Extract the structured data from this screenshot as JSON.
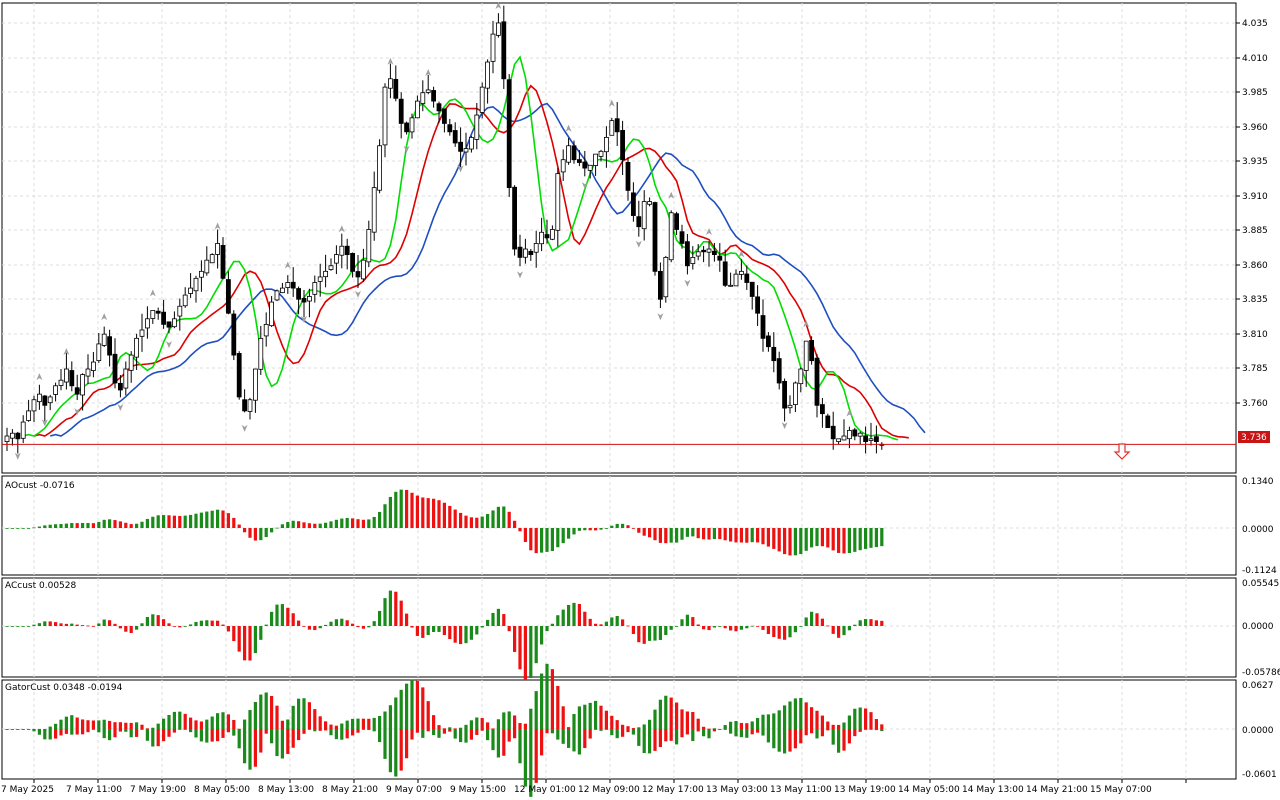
{
  "window": {
    "title": "MetaTrader chart"
  },
  "colors": {
    "background": "#ffffff",
    "grid": "#dcdcdc",
    "bull_body": "#ffffff",
    "bear_body": "#000000",
    "candle_outline": "#000000",
    "lips": "#00dd00",
    "teeth": "#dd0000",
    "jaw": "#1f4fbf",
    "hist_up": "#1a8a1a",
    "hist_down": "#ee1111",
    "price_line": "#d01010",
    "fractal": "#a0a0a0",
    "signal_arrow": "#e03030"
  },
  "main": {
    "current_price": "3.736",
    "price_ticks": [
      "4.035",
      "4.010",
      "3.985",
      "3.960",
      "3.935",
      "3.910",
      "3.885",
      "3.860",
      "3.835",
      "3.810",
      "3.785",
      "3.760"
    ],
    "signal": "sell-arrow-icon"
  },
  "panes": [
    {
      "id": "ao",
      "label": "AOcust -0.0716",
      "ticks": [
        "0.1340",
        "0.0000",
        "-0.1124"
      ]
    },
    {
      "id": "ac",
      "label": "ACcust 0.00528",
      "ticks": [
        "0.05545",
        "0.0000",
        "-0.05786"
      ]
    },
    {
      "id": "gator",
      "label": "GatorCust 0.0348 -0.0194",
      "ticks": [
        "0.0627",
        "0.0000",
        "-0.0601"
      ]
    }
  ],
  "time_axis": [
    "7 May 2025",
    "7 May 11:00",
    "7 May 19:00",
    "8 May 05:00",
    "8 May 13:00",
    "8 May 21:00",
    "9 May 07:00",
    "9 May 15:00",
    "12 May 01:00",
    "12 May 09:00",
    "12 May 17:00",
    "13 May 03:00",
    "13 May 11:00",
    "13 May 19:00",
    "14 May 05:00",
    "14 May 13:00",
    "14 May 21:00",
    "15 May 07:00"
  ],
  "chart_data": {
    "type": "candlestick",
    "price_range": [
      3.7155,
      4.0523
    ],
    "candles_close": [
      3.742,
      3.744,
      3.74,
      3.752,
      3.76,
      3.768,
      3.772,
      3.764,
      3.77,
      3.778,
      3.782,
      3.79,
      3.778,
      3.772,
      3.786,
      3.79,
      3.795,
      3.808,
      3.815,
      3.8,
      3.78,
      3.775,
      3.79,
      3.8,
      3.812,
      3.818,
      3.826,
      3.832,
      3.83,
      3.822,
      3.82,
      3.826,
      3.835,
      3.843,
      3.848,
      3.855,
      3.86,
      3.868,
      3.872,
      3.88,
      3.855,
      3.83,
      3.8,
      3.77,
      3.76,
      3.768,
      3.79,
      3.812,
      3.822,
      3.838,
      3.846,
      3.848,
      3.852,
      3.848,
      3.84,
      3.838,
      3.842,
      3.852,
      3.856,
      3.86,
      3.864,
      3.872,
      3.878,
      3.872,
      3.86,
      3.856,
      3.868,
      3.89,
      3.92,
      3.95,
      3.992,
      3.998,
      3.984,
      3.966,
      3.96,
      3.97,
      3.982,
      3.988,
      3.99,
      3.982,
      3.975,
      3.966,
      3.96,
      3.952,
      3.946,
      3.948,
      3.956,
      3.972,
      3.992,
      4.01,
      4.03,
      4.038,
      3.998,
      3.92,
      3.876,
      3.87,
      3.876,
      3.872,
      3.88,
      3.888,
      3.884,
      3.89,
      3.93,
      3.94,
      3.95,
      3.94,
      3.938,
      3.934,
      3.936,
      3.944,
      3.946,
      3.956,
      3.968,
      3.96,
      3.94,
      3.918,
      3.9,
      3.892,
      3.91,
      3.91,
      3.86,
      3.84,
      3.87,
      3.902,
      3.89,
      3.88,
      3.864,
      3.87,
      3.874,
      3.874,
      3.876,
      3.872,
      3.868,
      3.85,
      3.85,
      3.858,
      3.86,
      3.852,
      3.842,
      3.83,
      3.812,
      3.806,
      3.796,
      3.78,
      3.762,
      3.764,
      3.78,
      3.79,
      3.81,
      3.796,
      3.764,
      3.758,
      3.748,
      3.74,
      3.74,
      3.742,
      3.746,
      3.742,
      3.744,
      3.738,
      3.74,
      3.738,
      3.736
    ]
  }
}
